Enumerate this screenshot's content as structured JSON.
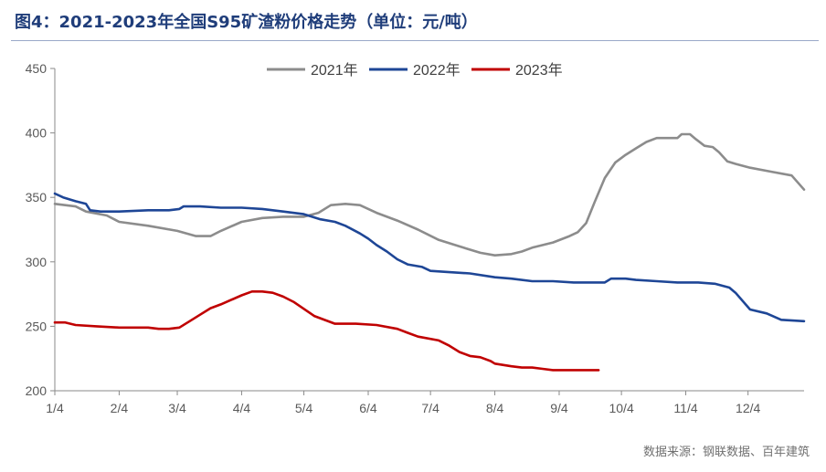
{
  "chart_data": {
    "type": "line",
    "title": "图4：2021-2023年全国S95矿渣粉价格走势（单位：元/吨）",
    "source": "数据来源：钢联数据、百年建筑",
    "ylim": [
      200,
      450
    ],
    "yticks": [
      200,
      250,
      300,
      350,
      400,
      450
    ],
    "xlim": [
      0,
      361
    ],
    "xticks": [
      {
        "label": "1/4",
        "x": 0
      },
      {
        "label": "2/4",
        "x": 31
      },
      {
        "label": "3/4",
        "x": 59
      },
      {
        "label": "4/4",
        "x": 90
      },
      {
        "label": "5/4",
        "x": 120
      },
      {
        "label": "6/4",
        "x": 151
      },
      {
        "label": "7/4",
        "x": 181
      },
      {
        "label": "8/4",
        "x": 212
      },
      {
        "label": "9/4",
        "x": 243
      },
      {
        "label": "10/4",
        "x": 273
      },
      {
        "label": "11/4",
        "x": 304
      },
      {
        "label": "12/4",
        "x": 334
      }
    ],
    "grid": false,
    "legend_position": "top",
    "series": [
      {
        "name": "2021年",
        "color": "#8C8C8C",
        "x": [
          0,
          10,
          15,
          25,
          31,
          45,
          59,
          68,
          75,
          80,
          90,
          100,
          110,
          120,
          127,
          133,
          140,
          147,
          155,
          165,
          175,
          185,
          195,
          205,
          212,
          220,
          225,
          230,
          240,
          248,
          252,
          256,
          260,
          265,
          270,
          275,
          280,
          285,
          290,
          300,
          302,
          306,
          309,
          313,
          317,
          320,
          324,
          328,
          335,
          345,
          355,
          361
        ],
        "y": [
          345,
          343,
          339,
          336,
          331,
          328,
          324,
          320,
          320,
          324,
          331,
          334,
          335,
          335,
          338,
          344,
          345,
          344,
          338,
          332,
          325,
          317,
          312,
          307,
          305,
          306,
          308,
          311,
          315,
          320,
          323,
          330,
          346,
          365,
          377,
          383,
          388,
          393,
          396,
          396,
          399,
          399,
          395,
          390,
          389,
          385,
          378,
          376,
          373,
          370,
          367,
          356
        ]
      },
      {
        "name": "2022年",
        "color": "#1E4696",
        "x": [
          0,
          4,
          10,
          15,
          17,
          22,
          31,
          45,
          55,
          60,
          62,
          70,
          80,
          90,
          100,
          110,
          120,
          128,
          135,
          140,
          147,
          151,
          155,
          160,
          165,
          170,
          177,
          181,
          190,
          200,
          212,
          220,
          230,
          240,
          250,
          258,
          265,
          268,
          275,
          280,
          290,
          300,
          310,
          318,
          325,
          328,
          335,
          343,
          350,
          361
        ],
        "y": [
          353,
          350,
          347,
          345,
          340,
          339,
          339,
          340,
          340,
          341,
          343,
          343,
          342,
          342,
          341,
          339,
          337,
          333,
          331,
          328,
          322,
          318,
          313,
          308,
          302,
          298,
          296,
          293,
          292,
          291,
          288,
          287,
          285,
          285,
          284,
          284,
          284,
          287,
          287,
          286,
          285,
          284,
          284,
          283,
          280,
          276,
          263,
          260,
          255,
          254
        ]
      },
      {
        "name": "2023年",
        "color": "#C00000",
        "x": [
          0,
          5,
          10,
          20,
          31,
          45,
          50,
          55,
          60,
          65,
          70,
          75,
          80,
          90,
          95,
          100,
          105,
          110,
          115,
          125,
          135,
          145,
          155,
          165,
          170,
          175,
          185,
          190,
          195,
          200,
          205,
          210,
          212,
          220,
          225,
          230,
          235,
          240,
          250,
          260,
          262
        ],
        "y": [
          253,
          253,
          251,
          250,
          249,
          249,
          248,
          248,
          249,
          254,
          259,
          264,
          267,
          274,
          277,
          277,
          276,
          273,
          269,
          258,
          252,
          252,
          251,
          248,
          245,
          242,
          239,
          235,
          230,
          227,
          226,
          223,
          221,
          219,
          218,
          218,
          217,
          216,
          216,
          216,
          216
        ]
      }
    ]
  }
}
